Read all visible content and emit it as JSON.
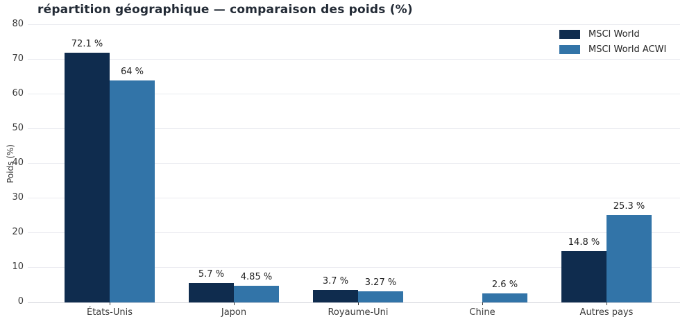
{
  "chart_data": {
    "type": "bar",
    "title": "répartition géographique — comparaison des poids (%)",
    "xlabel": "",
    "ylabel": "Poids (%)",
    "categories": [
      "États-Unis",
      "Japon",
      "Royaume-Uni",
      "Chine",
      "Autres pays"
    ],
    "series": [
      {
        "name": "MSCI World",
        "color": "#0f2c4e",
        "values": [
          72.1,
          5.7,
          3.7,
          0,
          14.8
        ],
        "labels": [
          "72.1 %",
          "5.7 %",
          "3.7 %",
          "",
          "14.8 %"
        ]
      },
      {
        "name": "MSCI World ACWI",
        "color": "#3274a8",
        "values": [
          64,
          4.85,
          3.27,
          2.6,
          25.3
        ],
        "labels": [
          "64 %",
          "4.85 %",
          "3.27 %",
          "2.6 %",
          "25.3 %"
        ]
      }
    ],
    "yticks": [
      0,
      10,
      20,
      30,
      40,
      50,
      60,
      70,
      80
    ],
    "ylim": [
      0,
      80
    ],
    "grid": true,
    "legend_position": "top-right",
    "colors": {
      "gridline": "#e9eaef",
      "axis_line": "#d4d5dc",
      "tick_text": "#3a3a3a",
      "label_text": "#1f1f1f",
      "title_text": "#222a35"
    }
  }
}
